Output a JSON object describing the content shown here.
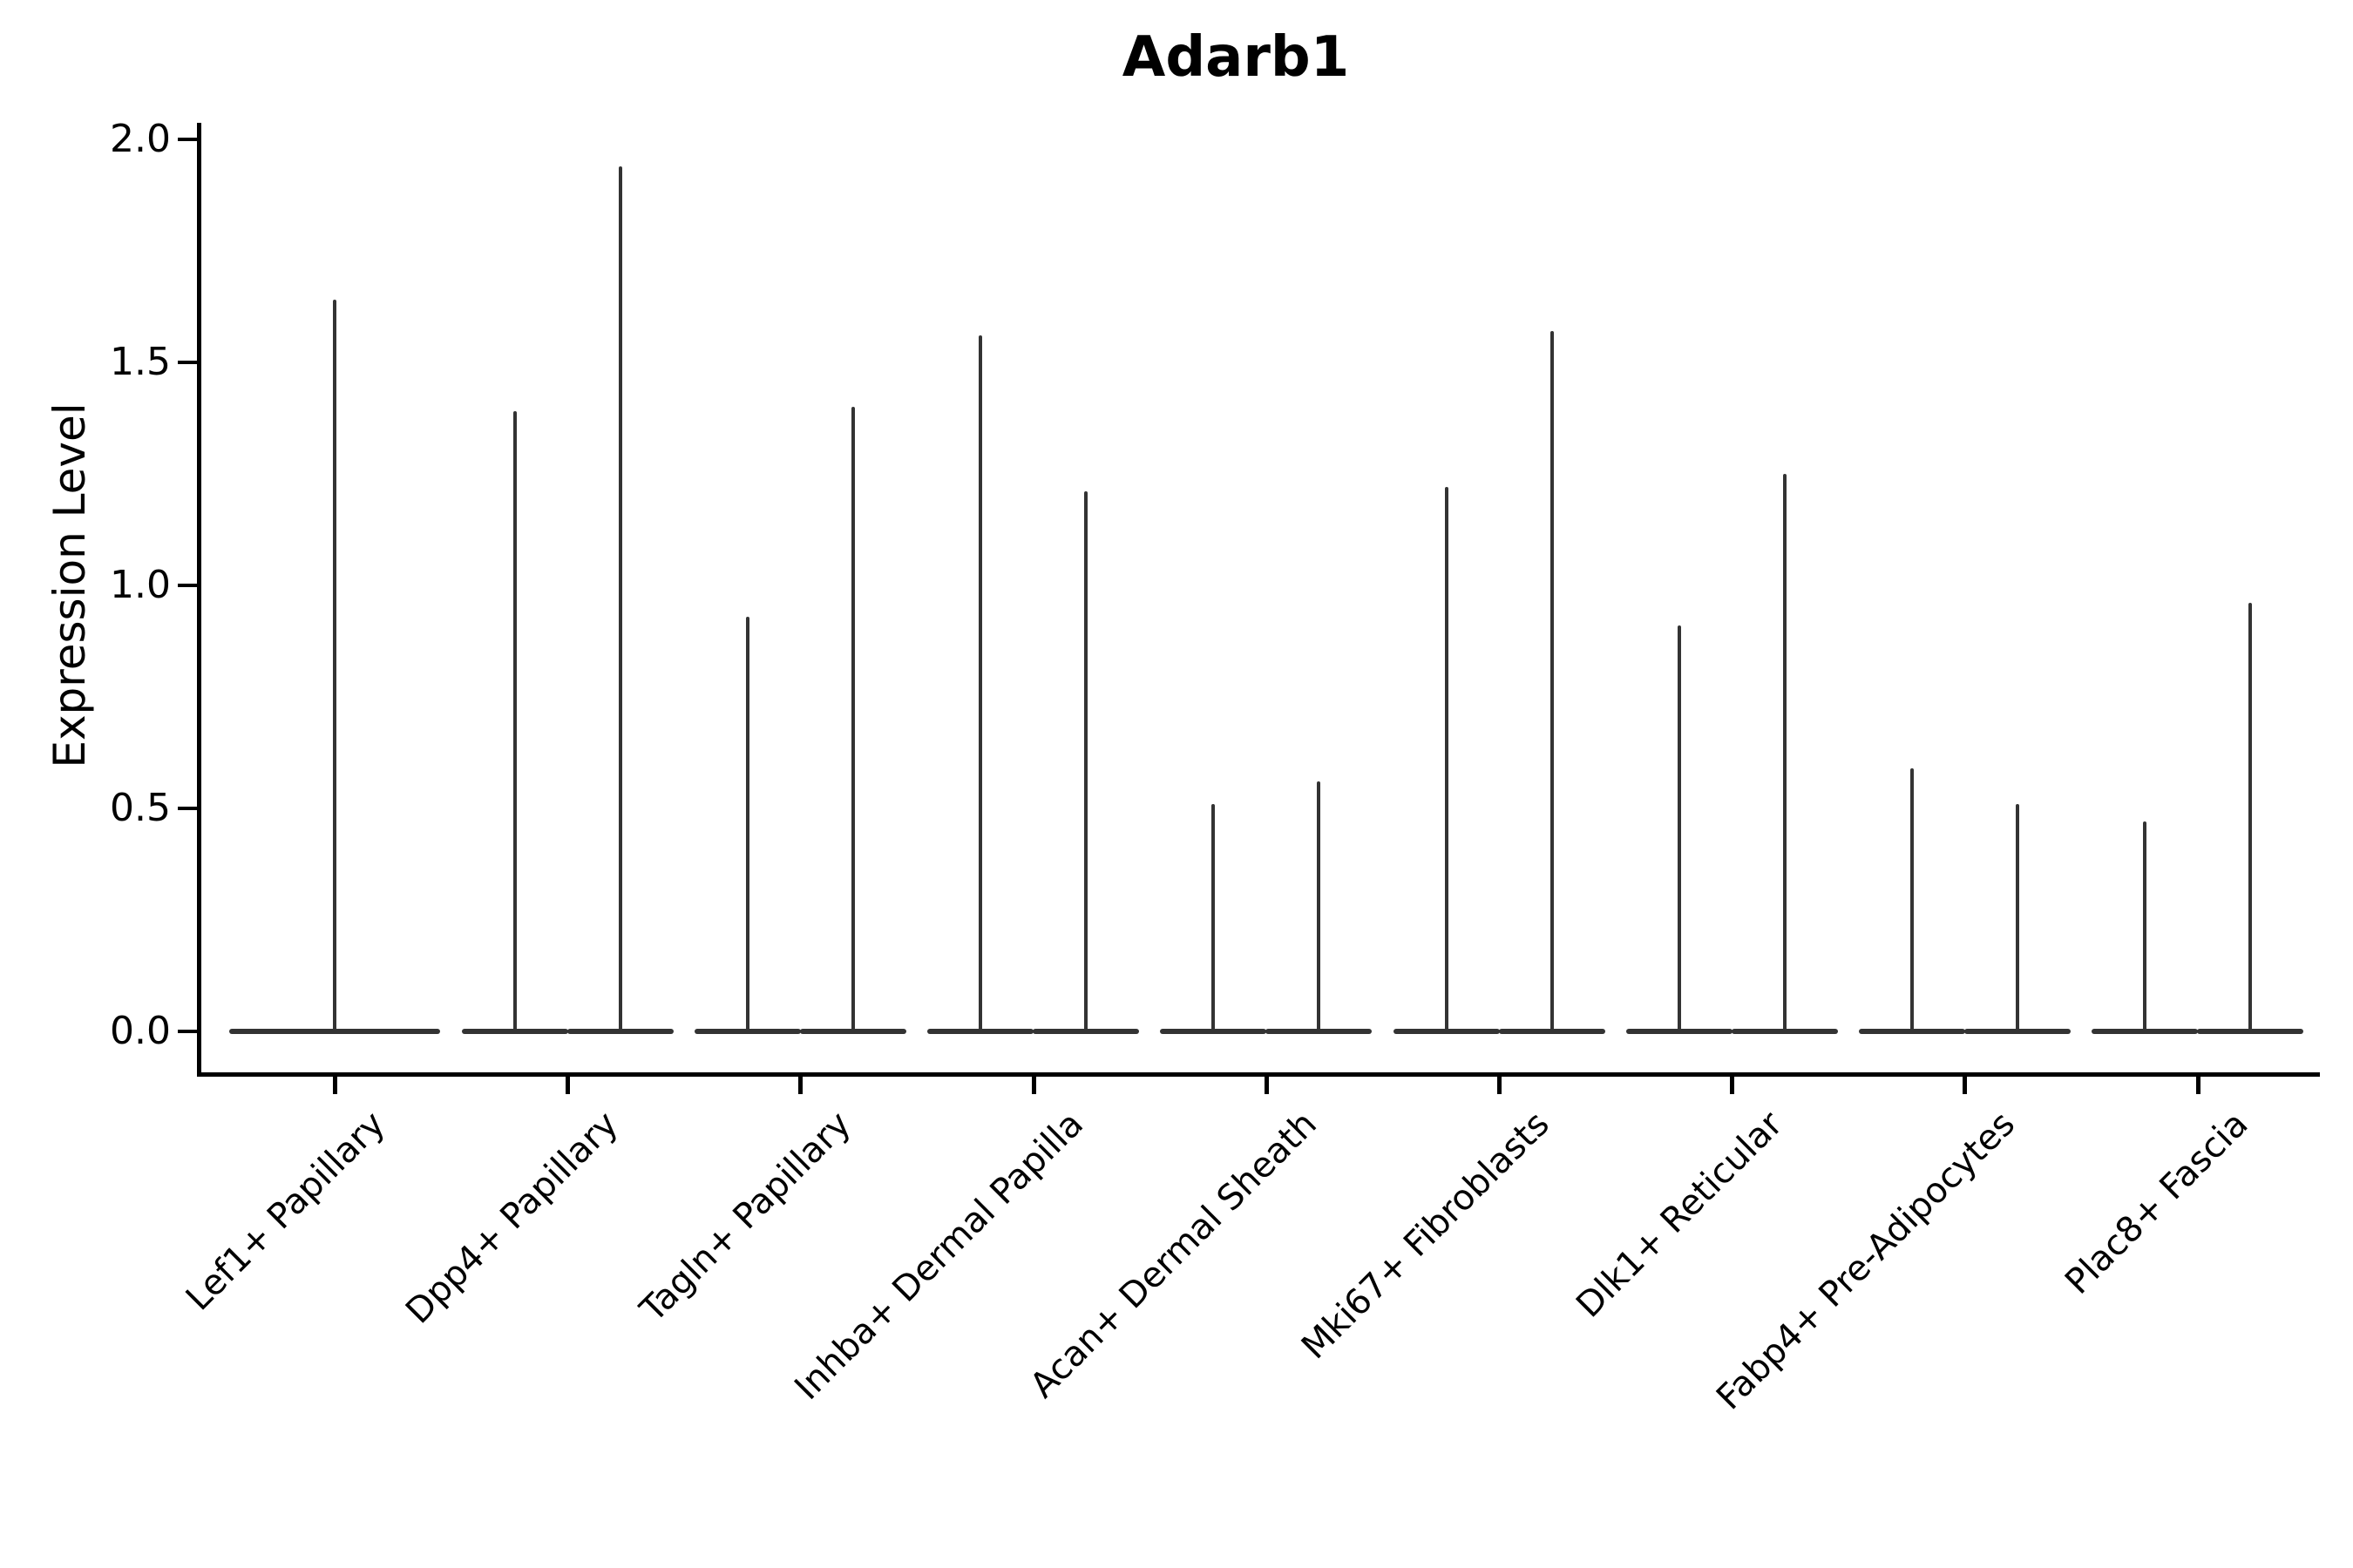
{
  "chart_data": {
    "type": "violin",
    "title": "Adarb1",
    "ylabel": "Expression Level",
    "yticks": [
      "0.0",
      "0.5",
      "1.0",
      "1.5",
      "2.0"
    ],
    "ylim": [
      0.0,
      2.0
    ],
    "grid": false,
    "legend": "none",
    "description": "Violin plot of Adarb1 expression per fibroblast cluster; nearly all density sits at 0 with thin spikes reaching each violin's maximum. All categories except the first show two side-by-side violins.",
    "categories": [
      {
        "label": "Lef1+ Papillary",
        "violin_maxima": [
          1.64
        ]
      },
      {
        "label": "Dpp4+ Papillary",
        "violin_maxima": [
          1.39,
          1.94
        ]
      },
      {
        "label": "Tagln+ Papillary",
        "violin_maxima": [
          0.93,
          1.4
        ]
      },
      {
        "label": "Inhba+ Dermal Papilla",
        "violin_maxima": [
          1.56,
          1.21
        ]
      },
      {
        "label": "Acan+ Dermal Sheath",
        "violin_maxima": [
          0.51,
          0.56
        ]
      },
      {
        "label": "Mki67+ Fibroblasts",
        "violin_maxima": [
          1.22,
          1.57
        ]
      },
      {
        "label": "Dlk1+ Reticular",
        "violin_maxima": [
          0.91,
          1.25
        ]
      },
      {
        "label": "Fabp4+ Pre-Adipocytes",
        "violin_maxima": [
          0.59,
          0.51
        ]
      },
      {
        "label": "Plac8+ Fascia",
        "violin_maxima": [
          0.47,
          0.96
        ]
      }
    ],
    "colors": {
      "violin": "#333333",
      "axis": "#000000",
      "text": "#000000",
      "background": "#ffffff"
    }
  }
}
